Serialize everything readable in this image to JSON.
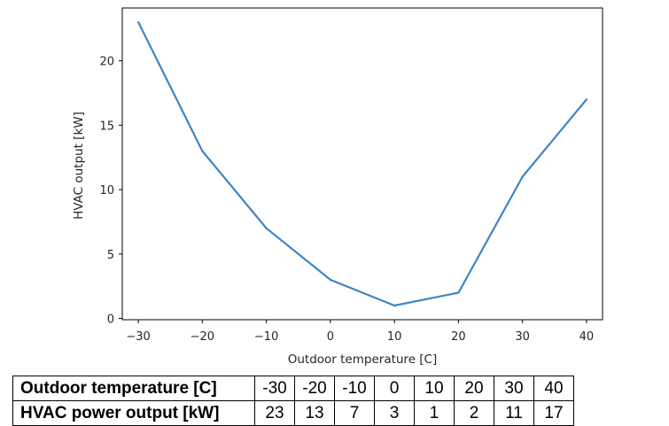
{
  "chart_data": {
    "type": "line",
    "xlabel": "Outdoor temperature [C]",
    "ylabel": "HVAC output [kW]",
    "x": [
      -30,
      -20,
      -10,
      0,
      10,
      20,
      30,
      40
    ],
    "series": [
      {
        "values": [
          23,
          13,
          7,
          3,
          1,
          2,
          11,
          17
        ]
      }
    ],
    "xticks": [
      "−30",
      "−20",
      "−10",
      "0",
      "10",
      "20",
      "30",
      "40"
    ],
    "xtick_values": [
      -30,
      -20,
      -10,
      0,
      10,
      20,
      30,
      40
    ],
    "yticks": [
      "0",
      "5",
      "10",
      "15",
      "20"
    ],
    "ytick_values": [
      0,
      5,
      10,
      15,
      20
    ],
    "xlim": [
      -32.5,
      42.5
    ],
    "ylim": [
      -0.1,
      24.1
    ],
    "grid": false,
    "line_color": "#3d85c6"
  },
  "table": {
    "rows": [
      {
        "header": "Outdoor temperature [C]",
        "values": [
          "-30",
          "-20",
          "-10",
          "0",
          "10",
          "20",
          "30",
          "40"
        ]
      },
      {
        "header": "HVAC power output [kW]",
        "values": [
          "23",
          "13",
          "7",
          "3",
          "1",
          "2",
          "11",
          "17"
        ]
      }
    ]
  }
}
